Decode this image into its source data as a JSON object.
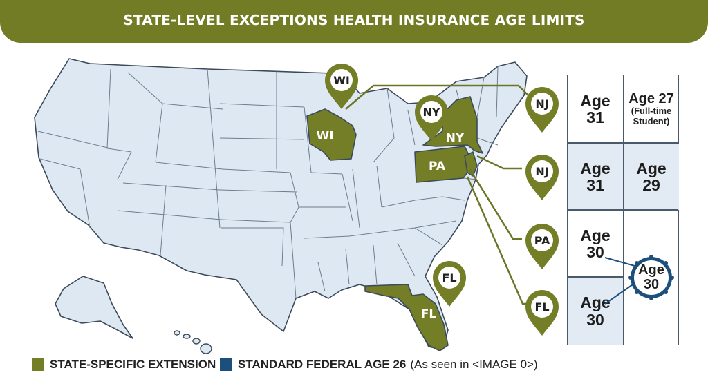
{
  "title": "STATE-LEVEL EXCEPTIONS HEALTH INSURANCE AGE LIMITS",
  "map": {
    "highlighted_states": [
      "WI",
      "NY",
      "PA",
      "NJ",
      "FL"
    ],
    "state_labels": {
      "wi": "WI",
      "ny": "NY",
      "pa": "PA",
      "fl": "FL"
    },
    "pins": {
      "wi": "WI",
      "ny": "NY",
      "fl_map": "FL",
      "nj1": "NJ",
      "nj2": "NJ",
      "pa": "PA",
      "fl": "FL"
    },
    "colors": {
      "extension": "#737e27",
      "federal": "#1d4f7c",
      "states": "#dde8f2",
      "outline": "#3b4a5a"
    }
  },
  "table": {
    "r1c1": {
      "line1": "Age",
      "line2": "31"
    },
    "r1c2": {
      "line1": "Age 27",
      "line2": "(Full-time",
      "line3": "Student)"
    },
    "r2c1": {
      "line1": "Age",
      "line2": "31"
    },
    "r2c2": {
      "line1": "Age",
      "line2": "29"
    },
    "r3c1": {
      "line1": "Age",
      "line2": "30"
    },
    "r4c1": {
      "line1": "Age",
      "line2": "30"
    },
    "badge": {
      "line1": "Age",
      "line2": "30"
    }
  },
  "legend": {
    "extension_label": "STATE-SPECIFIC EXTENSION",
    "federal_label": "STANDARD FEDERAL AGE 26",
    "federal_note": "(As seen in <IMAGE 0>)"
  }
}
